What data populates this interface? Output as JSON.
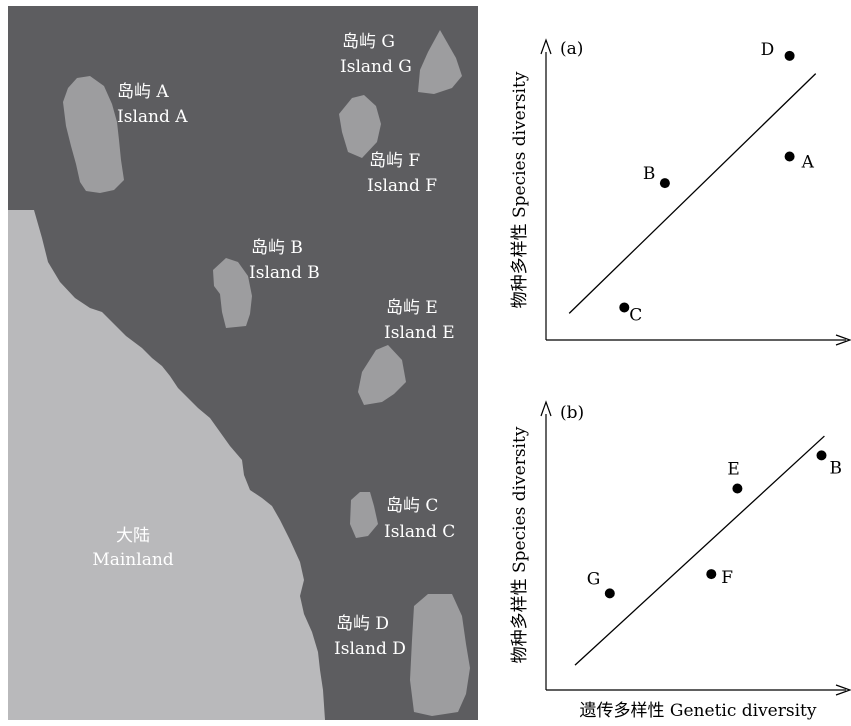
{
  "map": {
    "colors": {
      "sea": "#5d5d60",
      "island": "#9d9d9f",
      "mainland": "#b9b9bb",
      "label": "#ffffff"
    },
    "islands": [
      {
        "id": "A",
        "zh": "岛屿 A",
        "en": "Island A"
      },
      {
        "id": "B",
        "zh": "岛屿 B",
        "en": "Island B"
      },
      {
        "id": "C",
        "zh": "岛屿 C",
        "en": "Island C"
      },
      {
        "id": "D",
        "zh": "岛屿 D",
        "en": "Island D"
      },
      {
        "id": "E",
        "zh": "岛屿 E",
        "en": "Island E"
      },
      {
        "id": "F",
        "zh": "岛屿 F",
        "en": "Island F"
      },
      {
        "id": "G",
        "zh": "岛屿 G",
        "en": "Island G"
      }
    ],
    "mainland": {
      "zh": "大陆",
      "en": "Mainland"
    }
  },
  "chart_data": [
    {
      "type": "scatter",
      "panel": "(a)",
      "title": "",
      "xlabel": "",
      "ylabel": "物种多样性 Species diversity",
      "xlim": [
        0,
        10
      ],
      "ylim": [
        0,
        10
      ],
      "points": [
        {
          "label": "D",
          "x": 8.4,
          "y": 9.6
        },
        {
          "label": "A",
          "x": 8.4,
          "y": 6.2
        },
        {
          "label": "B",
          "x": 4.1,
          "y": 5.3
        },
        {
          "label": "C",
          "x": 2.7,
          "y": 1.1
        }
      ],
      "trend_line": {
        "from": [
          0.8,
          0.9
        ],
        "to": [
          9.3,
          9.0
        ]
      }
    },
    {
      "type": "scatter",
      "panel": "(b)",
      "title": "",
      "xlabel": "遗传多样性 Genetic diversity",
      "ylabel": "物种多样性 Species diversity",
      "xlim": [
        0,
        10
      ],
      "ylim": [
        0,
        10
      ],
      "points": [
        {
          "label": "B",
          "x": 9.5,
          "y": 8.5
        },
        {
          "label": "E",
          "x": 6.6,
          "y": 7.3
        },
        {
          "label": "F",
          "x": 5.7,
          "y": 4.2
        },
        {
          "label": "G",
          "x": 2.2,
          "y": 3.5
        }
      ],
      "trend_line": {
        "from": [
          1.0,
          0.9
        ],
        "to": [
          9.6,
          9.2
        ]
      }
    }
  ]
}
